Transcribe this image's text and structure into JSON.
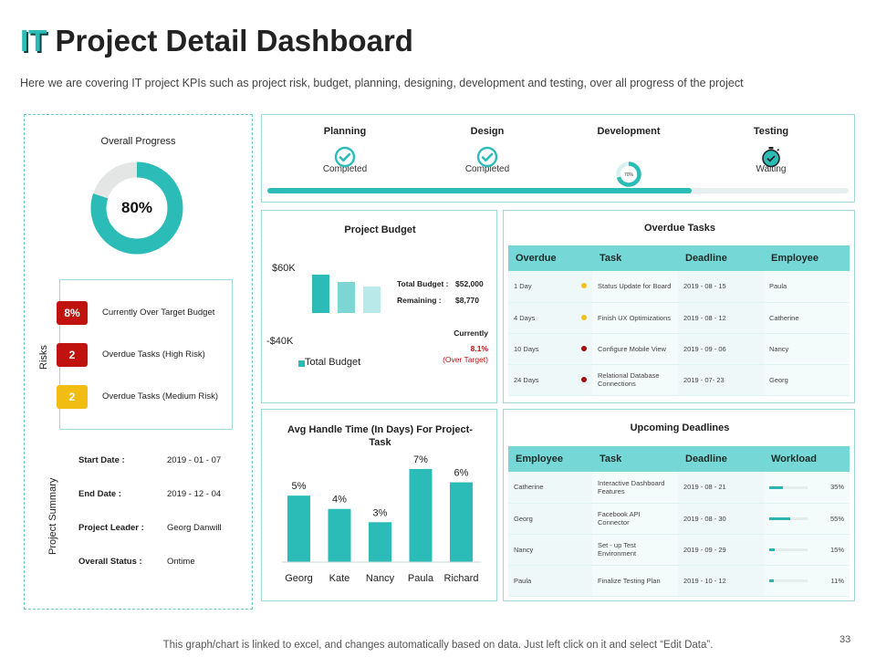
{
  "header": {
    "title_it": "IT",
    "title_rest": "Project Detail Dashboard",
    "subtitle": "Here we are covering IT project KPIs such as project risk, budget, planning, designing, development and testing, over all progress of the project"
  },
  "overall_progress": {
    "label": "Overall Progress",
    "value_text": "80%",
    "value": 80
  },
  "risks": {
    "label": "Risks",
    "items": [
      {
        "badge": "8%",
        "label": "Currently Over Target Budget",
        "color": "#c0130f"
      },
      {
        "badge": "2",
        "label": "Overdue Tasks (High Risk)",
        "color": "#c0130f"
      },
      {
        "badge": "2",
        "label": "Overdue Tasks (Medium Risk)",
        "color": "#f2bd13"
      }
    ]
  },
  "project_summary": {
    "label": "Project Summary",
    "rows": [
      {
        "key": "Start Date :",
        "value": "2019 - 01 - 07"
      },
      {
        "key": "End Date :",
        "value": "2019 - 12 - 04"
      },
      {
        "key": "Project Leader :",
        "value": "Georg Danwill"
      },
      {
        "key": "Overall Status :",
        "value": "Ontime"
      }
    ]
  },
  "stages": {
    "planning": {
      "name": "Planning",
      "status": "Completed",
      "icon": "check-circle-icon"
    },
    "design": {
      "name": "Design",
      "status": "Completed",
      "icon": "check-circle-icon"
    },
    "development": {
      "name": "Development",
      "percent_text": "70%",
      "percent": 70,
      "icon": "progress-ring-icon"
    },
    "testing": {
      "name": "Testing",
      "status": "Waiting",
      "icon": "stopwatch-icon"
    },
    "progress_fraction": 0.73
  },
  "budget": {
    "title": "Project Budget",
    "axis_top": "$60K",
    "axis_bottom": "-$40K",
    "legend": "Total Budget",
    "total_label": "Total Budget :",
    "total_value": "$52,000",
    "remaining_label": "Remaining :",
    "remaining_value": "$8,770",
    "currently_label": "Currently",
    "currently_value": "8.1%",
    "currently_note": "(Over Target)"
  },
  "overdue": {
    "title": "Overdue Tasks",
    "headers": [
      "Overdue",
      "Task",
      "Deadline",
      "Employee"
    ],
    "rows": [
      {
        "overdue": "1 Day",
        "task": "Status Update for Board",
        "deadline": "2019 - 08 - 15",
        "employee": "Paula",
        "dot": "#f2c21b"
      },
      {
        "overdue": "4 Days",
        "task": "Finish UX Optimizations",
        "deadline": "2019 - 08 - 12",
        "employee": "Catherine",
        "dot": "#f2c21b"
      },
      {
        "overdue": "10 Days",
        "task": "Configure Mobile View",
        "deadline": "2019 - 09 - 06",
        "employee": "Nancy",
        "dot": "#a3100d"
      },
      {
        "overdue": "24 Days",
        "task": "Relational Database Connections",
        "deadline": "2019 - 07- 23",
        "employee": "Georg",
        "dot": "#a3100d"
      }
    ]
  },
  "upcoming": {
    "title": "Upcoming Deadlines",
    "headers": [
      "Employee",
      "Task",
      "Deadline",
      "Workload"
    ],
    "rows": [
      {
        "employee": "Catherine",
        "task": "Interactive Dashboard Features",
        "deadline": "2019 - 08 - 21",
        "workload_text": "35%",
        "workload": 35
      },
      {
        "employee": "Georg",
        "task": "Facebook API Connector",
        "deadline": "2019 - 08 - 30",
        "workload_text": "55%",
        "workload": 55
      },
      {
        "employee": "Nancy",
        "task": "Set - up Test Environment",
        "deadline": "2019 - 09 - 29",
        "workload_text": "15%",
        "workload": 15
      },
      {
        "employee": "Paula",
        "task": "Finalize Testing Plan",
        "deadline": "2019 - 10 - 12",
        "workload_text": "11%",
        "workload": 11
      }
    ]
  },
  "chart_data": {
    "type": "bar",
    "title": "Avg Handle Time (In Days) For Project-Task",
    "categories": [
      "Georg",
      "Kate",
      "Nancy",
      "Paula",
      "Richard"
    ],
    "values": [
      5,
      4,
      3,
      7,
      6
    ],
    "labels": [
      "5%",
      "4%",
      "3%",
      "7%",
      "6%"
    ],
    "ylim": [
      0,
      7
    ],
    "color": "#2cbcb8"
  },
  "footer": {
    "note": "This graph/chart is linked to excel, and changes automatically based on data. Just left click on it and select “Edit Data”.",
    "page_number": "33"
  }
}
